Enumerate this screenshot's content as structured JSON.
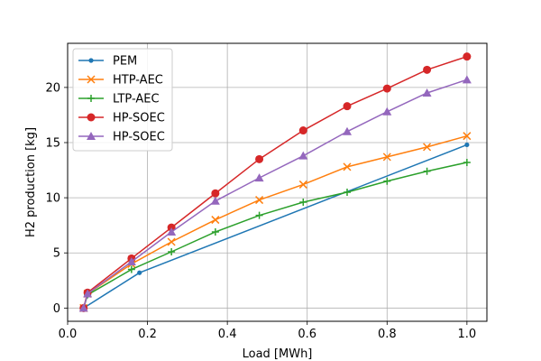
{
  "chart_data": {
    "type": "line",
    "title": "",
    "xlabel": "Load [MWh]",
    "ylabel": "H2 production [kg]",
    "xlim": [
      -0.0,
      1.05
    ],
    "ylim": [
      -1.2,
      24.0
    ],
    "xticks": [
      0.0,
      0.2,
      0.4,
      0.6,
      0.8,
      1.0
    ],
    "xtick_labels": [
      "0.0",
      "0.2",
      "0.4",
      "0.6",
      "0.8",
      "1.0"
    ],
    "yticks": [
      0,
      5,
      10,
      15,
      20
    ],
    "ytick_labels": [
      "0",
      "5",
      "10",
      "15",
      "20"
    ],
    "grid": true,
    "legend_position": "top-left",
    "series": [
      {
        "name": "PEM",
        "color": "#1f77b4",
        "marker": "point",
        "x": [
          0.04,
          0.18,
          1.0
        ],
        "y": [
          0.0,
          3.2,
          14.8
        ]
      },
      {
        "name": "HTP-AEC",
        "color": "#ff7f0e",
        "marker": "x",
        "x": [
          0.04,
          0.05,
          0.16,
          0.26,
          0.37,
          0.48,
          0.59,
          0.7,
          0.8,
          0.9,
          1.0
        ],
        "y": [
          0.0,
          1.3,
          4.0,
          6.0,
          8.0,
          9.8,
          11.2,
          12.8,
          13.7,
          14.6,
          15.6
        ]
      },
      {
        "name": "LTP-AEC",
        "color": "#2ca02c",
        "marker": "plus",
        "x": [
          0.04,
          0.05,
          0.16,
          0.26,
          0.37,
          0.48,
          0.59,
          0.7,
          0.8,
          0.9,
          1.0
        ],
        "y": [
          0.0,
          1.2,
          3.5,
          5.1,
          6.9,
          8.4,
          9.6,
          10.5,
          11.5,
          12.4,
          13.2
        ]
      },
      {
        "name": "HP-SOEC",
        "color": "#d62728",
        "marker": "circle",
        "x": [
          0.04,
          0.05,
          0.16,
          0.26,
          0.37,
          0.48,
          0.59,
          0.7,
          0.8,
          0.9,
          1.0
        ],
        "y": [
          0.0,
          1.4,
          4.5,
          7.3,
          10.4,
          13.5,
          16.1,
          18.3,
          19.9,
          21.6,
          22.8
        ]
      },
      {
        "name": "HP-SOEC",
        "color": "#9467bd",
        "marker": "triangle",
        "x": [
          0.04,
          0.05,
          0.16,
          0.26,
          0.37,
          0.48,
          0.59,
          0.7,
          0.8,
          0.9,
          1.0
        ],
        "y": [
          0.0,
          1.3,
          4.2,
          6.9,
          9.7,
          11.8,
          13.8,
          16.0,
          17.8,
          19.5,
          20.7
        ]
      }
    ]
  }
}
